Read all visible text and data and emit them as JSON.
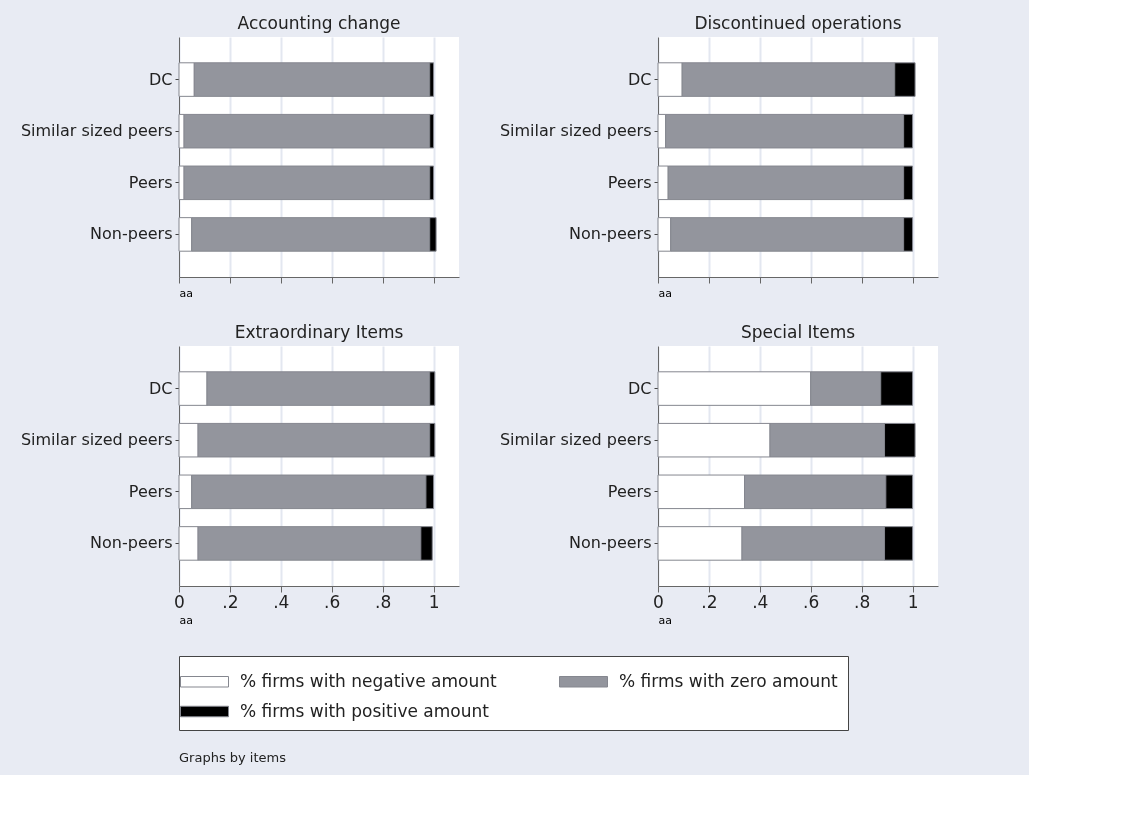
{
  "chart_data": [
    {
      "type": "bar",
      "orientation": "horizontal",
      "stacked": true,
      "title": "Accounting change",
      "xlabel": "aa",
      "categories": [
        "DC",
        "Similar sized peers",
        "Peers",
        "Non-peers"
      ],
      "series": [
        {
          "color": "#ffffff",
          "values": [
            0.06,
            0.02,
            0.02,
            0.05
          ]
        },
        {
          "color": "#93959d",
          "values": [
            0.925,
            0.965,
            0.965,
            0.935
          ]
        },
        {
          "color": "#000000",
          "values": [
            0.015,
            0.015,
            0.015,
            0.025
          ]
        }
      ],
      "xlim": [
        0,
        1.1
      ],
      "xticks": [
        {
          "value": 0,
          "label": null
        },
        {
          "value": 0.2,
          "label": null
        },
        {
          "value": 0.4,
          "label": null
        },
        {
          "value": 0.6,
          "label": null
        },
        {
          "value": 0.8,
          "label": null
        },
        {
          "value": 1,
          "label": null
        }
      ],
      "grid": "x",
      "tick_labels": "y"
    },
    {
      "type": "bar",
      "orientation": "horizontal",
      "stacked": true,
      "title": "Discontinued operations",
      "xlabel": "aa",
      "categories": [
        "DC",
        "Similar sized peers",
        "Peers",
        "Non-peers"
      ],
      "series": [
        {
          "color": "#ffffff",
          "values": [
            0.095,
            0.03,
            0.04,
            0.05
          ]
        },
        {
          "color": "#93959d",
          "values": [
            0.835,
            0.935,
            0.925,
            0.915
          ]
        },
        {
          "color": "#000000",
          "values": [
            0.08,
            0.035,
            0.035,
            0.035
          ]
        }
      ],
      "xlim": [
        0,
        1.1
      ],
      "xticks": [
        {
          "value": 0,
          "label": null
        },
        {
          "value": 0.2,
          "label": null
        },
        {
          "value": 0.4,
          "label": null
        },
        {
          "value": 0.6,
          "label": null
        },
        {
          "value": 0.8,
          "label": null
        },
        {
          "value": 1,
          "label": null
        }
      ],
      "grid": "x",
      "tick_labels": "y"
    },
    {
      "type": "bar",
      "orientation": "horizontal",
      "stacked": true,
      "title": "Extraordinary Items",
      "xlabel": "aa",
      "categories": [
        "DC",
        "Similar sized peers",
        "Peers",
        "Non-peers"
      ],
      "series": [
        {
          "color": "#ffffff",
          "values": [
            0.11,
            0.075,
            0.05,
            0.075
          ]
        },
        {
          "color": "#93959d",
          "values": [
            0.875,
            0.91,
            0.92,
            0.875
          ]
        },
        {
          "color": "#000000",
          "values": [
            0.02,
            0.02,
            0.03,
            0.045
          ]
        }
      ],
      "xlim": [
        0,
        1.1
      ],
      "xticks": [
        {
          "value": 0,
          "label": "0"
        },
        {
          "value": 0.2,
          "label": ".2"
        },
        {
          "value": 0.4,
          "label": ".4"
        },
        {
          "value": 0.6,
          "label": ".6"
        },
        {
          "value": 0.8,
          "label": ".8"
        },
        {
          "value": 1,
          "label": "1"
        }
      ],
      "grid": "x"
    },
    {
      "type": "bar",
      "orientation": "horizontal",
      "stacked": true,
      "title": "Special Items",
      "xlabel": "aa",
      "categories": [
        "DC",
        "Similar sized peers",
        "Peers",
        "Non-peers"
      ],
      "series": [
        {
          "name": "% firms with negative amount",
          "color": "#ffffff",
          "values": [
            0.6,
            0.44,
            0.34,
            0.33
          ]
        },
        {
          "name": "% firms with zero amount",
          "color": "#93959d",
          "values": [
            0.275,
            0.45,
            0.555,
            0.56
          ]
        },
        {
          "name": "% firms with positive amount",
          "color": "#000000",
          "values": [
            0.125,
            0.12,
            0.105,
            0.11
          ]
        }
      ],
      "xlim": [
        0,
        1.1
      ],
      "xticks": [
        {
          "value": 0,
          "label": "0"
        },
        {
          "value": 0.2,
          "label": ".2"
        },
        {
          "value": 0.4,
          "label": ".4"
        },
        {
          "value": 0.6,
          "label": ".6"
        },
        {
          "value": 0.8,
          "label": ".8"
        },
        {
          "value": 1,
          "label": "1"
        }
      ],
      "grid": "x",
      "legend": "bottom",
      "annotations": [
        "Graphs by items"
      ]
    }
  ]
}
